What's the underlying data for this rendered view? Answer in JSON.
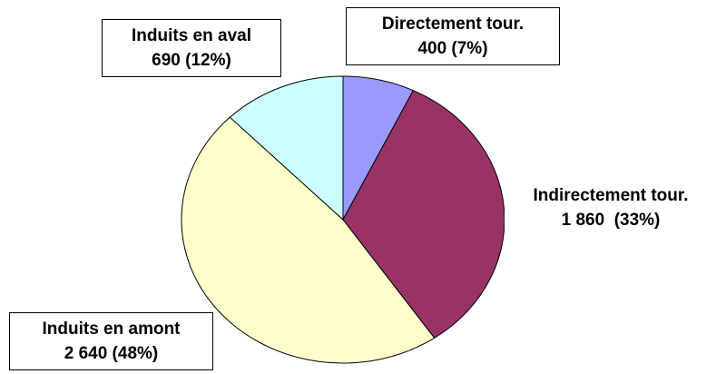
{
  "chart_data": {
    "type": "pie",
    "categories": [
      "Directement tour.",
      "Indirectement tour.",
      "Induits en amont",
      "Induits en aval"
    ],
    "values": [
      400,
      1860,
      2640,
      690
    ],
    "value_labels": [
      "400 (7%)",
      "1 860  (33%)",
      "2 640 (48%)",
      "690 (12%)"
    ],
    "colors": [
      "#9999ff",
      "#993366",
      "#ffffcc",
      "#ccffff"
    ]
  }
}
